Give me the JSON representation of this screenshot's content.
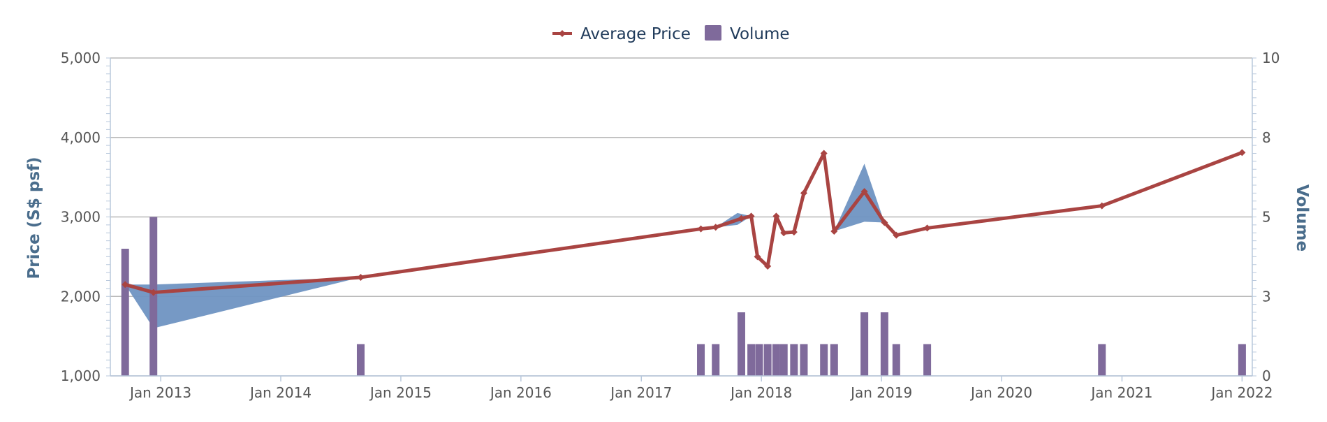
{
  "chart_data": {
    "type": "line",
    "title": "",
    "legend": {
      "placement": "top-center",
      "items": [
        {
          "label": "Average Price",
          "marker": "line-diamond"
        },
        {
          "label": "Volume",
          "marker": "square"
        }
      ]
    },
    "colors": {
      "price_line": "#a94442",
      "volume_bar": "#7f6a9b",
      "range_band": "#6f93c2",
      "grid": "#b8b8b8",
      "axis": "#b8c8dc",
      "right_axis_title": "#4a6d8c"
    },
    "x_axis": {
      "type": "date",
      "range": [
        "2012-08-01",
        "2022-02-01"
      ],
      "tick_labels": [
        "Jan 2013",
        "Jan 2014",
        "Jan 2015",
        "Jan 2016",
        "Jan 2017",
        "Jan 2018",
        "Jan 2019",
        "Jan 2020",
        "Jan 2021",
        "Jan 2022"
      ],
      "tick_dates": [
        "2013-01-01",
        "2014-01-01",
        "2015-01-01",
        "2016-01-01",
        "2017-01-01",
        "2018-01-01",
        "2019-01-01",
        "2020-01-01",
        "2021-01-01",
        "2022-01-01"
      ]
    },
    "y_axis_left": {
      "label": "Price (S$ psf)",
      "range": [
        1000,
        5000
      ],
      "tick_labels": [
        "1,000",
        "2,000",
        "3,000",
        "4,000",
        "5,000"
      ],
      "tick_values": [
        1000,
        2000,
        3000,
        4000,
        5000
      ]
    },
    "y_axis_right": {
      "label": "Volume",
      "range": [
        0,
        10
      ],
      "tick_labels": [
        "0",
        "3",
        "5",
        "8",
        "10"
      ],
      "tick_values": [
        0,
        2.5,
        5,
        7.5,
        10
      ]
    },
    "grid": true,
    "series": [
      {
        "name": "Average Price",
        "type": "line",
        "axis": "left",
        "points": [
          {
            "x": "2012-09-15",
            "y": 2150
          },
          {
            "x": "2012-12-10",
            "y": 2050
          },
          {
            "x": "2014-09-01",
            "y": 2240
          },
          {
            "x": "2017-07-01",
            "y": 2850
          },
          {
            "x": "2017-08-15",
            "y": 2870
          },
          {
            "x": "2017-11-01",
            "y": 2980
          },
          {
            "x": "2017-12-01",
            "y": 3010
          },
          {
            "x": "2017-12-20",
            "y": 2500
          },
          {
            "x": "2018-01-20",
            "y": 2380
          },
          {
            "x": "2018-02-15",
            "y": 3010
          },
          {
            "x": "2018-03-10",
            "y": 2800
          },
          {
            "x": "2018-04-10",
            "y": 2810
          },
          {
            "x": "2018-05-10",
            "y": 3300
          },
          {
            "x": "2018-07-10",
            "y": 3800
          },
          {
            "x": "2018-08-10",
            "y": 2820
          },
          {
            "x": "2018-11-10",
            "y": 3320
          },
          {
            "x": "2019-01-10",
            "y": 2930
          },
          {
            "x": "2019-02-15",
            "y": 2770
          },
          {
            "x": "2019-05-20",
            "y": 2860
          },
          {
            "x": "2020-11-01",
            "y": 3140
          },
          {
            "x": "2022-01-01",
            "y": 3810
          }
        ]
      },
      {
        "name": "Volume",
        "type": "bar",
        "axis": "right",
        "points": [
          {
            "x": "2012-09-15",
            "y": 4
          },
          {
            "x": "2012-12-10",
            "y": 5
          },
          {
            "x": "2014-09-01",
            "y": 1
          },
          {
            "x": "2017-07-01",
            "y": 1
          },
          {
            "x": "2017-08-15",
            "y": 1
          },
          {
            "x": "2017-11-01",
            "y": 2
          },
          {
            "x": "2017-12-01",
            "y": 1
          },
          {
            "x": "2017-12-25",
            "y": 1
          },
          {
            "x": "2018-01-20",
            "y": 1
          },
          {
            "x": "2018-02-15",
            "y": 1
          },
          {
            "x": "2018-03-10",
            "y": 1
          },
          {
            "x": "2018-04-10",
            "y": 1
          },
          {
            "x": "2018-05-10",
            "y": 1
          },
          {
            "x": "2018-07-10",
            "y": 1
          },
          {
            "x": "2018-08-10",
            "y": 1
          },
          {
            "x": "2018-11-10",
            "y": 2
          },
          {
            "x": "2019-01-10",
            "y": 2
          },
          {
            "x": "2019-02-15",
            "y": 1
          },
          {
            "x": "2019-05-20",
            "y": 1
          },
          {
            "x": "2020-11-01",
            "y": 1
          },
          {
            "x": "2022-01-01",
            "y": 1
          }
        ]
      },
      {
        "type": "arearange",
        "axis": "left",
        "points": [
          {
            "x": "2012-09-15",
            "low": 2150,
            "high": 2150
          },
          {
            "x": "2012-12-10",
            "low": 1600,
            "high": 2150
          },
          {
            "x": "2014-09-01",
            "low": 2240,
            "high": 2240
          },
          {
            "x": "2017-07-01",
            "low": 2850,
            "high": 2850
          },
          {
            "x": "2017-08-15",
            "low": 2870,
            "high": 2870
          },
          {
            "x": "2017-10-20",
            "low": 2900,
            "high": 3050
          },
          {
            "x": "2017-12-01",
            "low": 3010,
            "high": 3010
          },
          {
            "x": "2018-08-10",
            "low": 2820,
            "high": 2820
          },
          {
            "x": "2018-11-10",
            "low": 2940,
            "high": 3670
          },
          {
            "x": "2019-01-10",
            "low": 2930,
            "high": 2930
          }
        ]
      }
    ]
  }
}
